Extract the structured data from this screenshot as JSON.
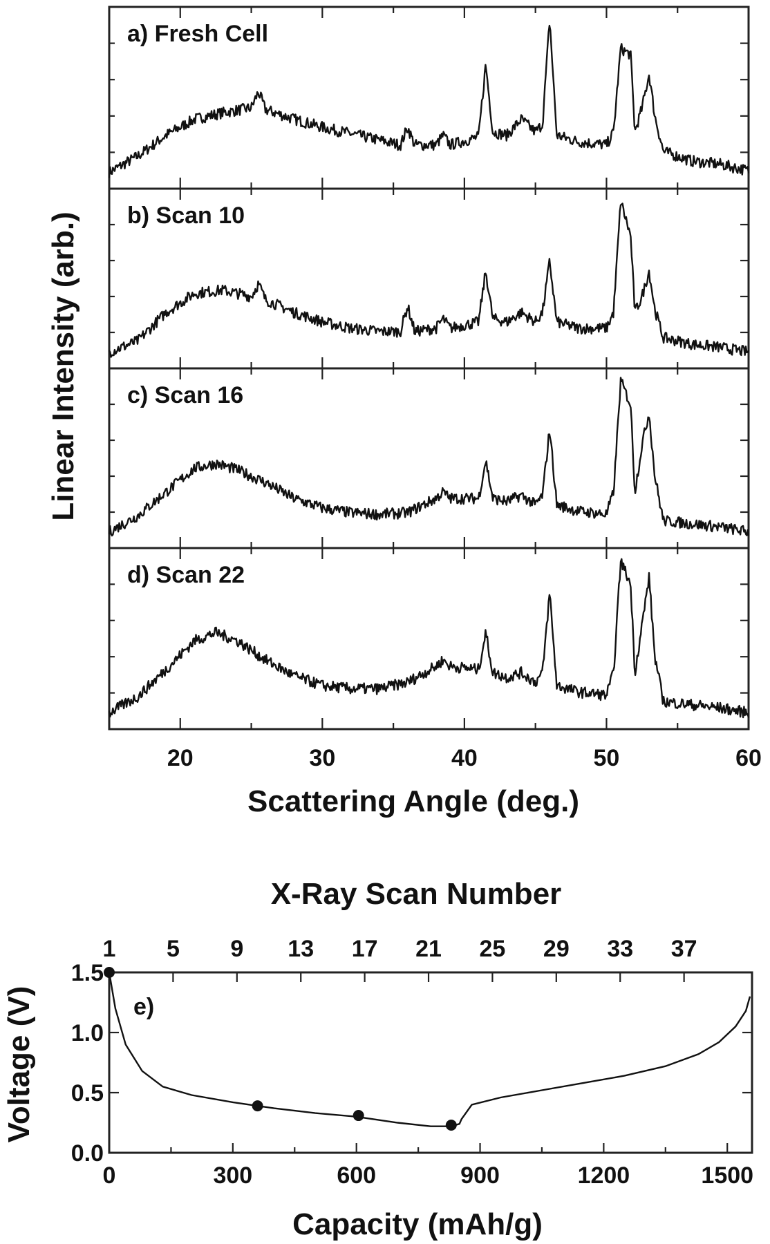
{
  "chart_data": [
    {
      "type": "line",
      "ylabel": "Linear Intensity (arb.)",
      "xlabel": "Scattering Angle (deg.)",
      "xlim": [
        15,
        60
      ],
      "x_ticks": [
        20,
        30,
        40,
        50,
        60
      ],
      "grid": false,
      "panels": [
        {
          "label": "a) Fresh Cell",
          "points": [
            [
              15,
              0.05
            ],
            [
              17,
              0.15
            ],
            [
              19,
              0.28
            ],
            [
              21,
              0.38
            ],
            [
              23,
              0.42
            ],
            [
              25,
              0.45
            ],
            [
              25.5,
              0.55
            ],
            [
              26,
              0.44
            ],
            [
              28,
              0.38
            ],
            [
              30,
              0.33
            ],
            [
              32,
              0.29
            ],
            [
              34,
              0.25
            ],
            [
              35.5,
              0.22
            ],
            [
              36,
              0.33
            ],
            [
              36.5,
              0.22
            ],
            [
              38,
              0.22
            ],
            [
              38.5,
              0.28
            ],
            [
              39,
              0.22
            ],
            [
              41,
              0.27
            ],
            [
              41.5,
              0.72
            ],
            [
              42,
              0.3
            ],
            [
              43,
              0.28
            ],
            [
              44,
              0.38
            ],
            [
              45,
              0.3
            ],
            [
              45.5,
              0.35
            ],
            [
              46,
              1.0
            ],
            [
              46.5,
              0.28
            ],
            [
              48,
              0.24
            ],
            [
              50,
              0.22
            ],
            [
              50.5,
              0.3
            ],
            [
              51,
              0.82
            ],
            [
              51.7,
              0.78
            ],
            [
              52,
              0.3
            ],
            [
              52.5,
              0.45
            ],
            [
              53,
              0.66
            ],
            [
              53.4,
              0.4
            ],
            [
              54,
              0.18
            ],
            [
              56,
              0.12
            ],
            [
              58,
              0.1
            ],
            [
              60,
              0.06
            ]
          ]
        },
        {
          "label": "b) Scan 10",
          "points": [
            [
              15,
              0.05
            ],
            [
              17,
              0.12
            ],
            [
              19,
              0.3
            ],
            [
              21,
              0.42
            ],
            [
              23,
              0.44
            ],
            [
              25,
              0.4
            ],
            [
              25.5,
              0.48
            ],
            [
              26,
              0.38
            ],
            [
              28,
              0.3
            ],
            [
              30,
              0.24
            ],
            [
              32,
              0.2
            ],
            [
              34,
              0.18
            ],
            [
              35.5,
              0.18
            ],
            [
              36,
              0.34
            ],
            [
              36.5,
              0.18
            ],
            [
              38,
              0.2
            ],
            [
              38.5,
              0.26
            ],
            [
              39,
              0.2
            ],
            [
              41,
              0.24
            ],
            [
              41.5,
              0.56
            ],
            [
              42,
              0.26
            ],
            [
              43,
              0.24
            ],
            [
              44,
              0.3
            ],
            [
              45,
              0.24
            ],
            [
              45.5,
              0.3
            ],
            [
              46,
              0.62
            ],
            [
              46.5,
              0.24
            ],
            [
              48,
              0.2
            ],
            [
              50,
              0.2
            ],
            [
              50.5,
              0.3
            ],
            [
              51,
              1.0
            ],
            [
              51.7,
              0.78
            ],
            [
              52,
              0.3
            ],
            [
              52.5,
              0.4
            ],
            [
              53,
              0.56
            ],
            [
              53.4,
              0.32
            ],
            [
              54,
              0.14
            ],
            [
              56,
              0.1
            ],
            [
              58,
              0.08
            ],
            [
              60,
              0.05
            ]
          ]
        },
        {
          "label": "c) Scan 16",
          "points": [
            [
              15,
              0.05
            ],
            [
              17,
              0.15
            ],
            [
              19,
              0.3
            ],
            [
              21,
              0.45
            ],
            [
              22.5,
              0.48
            ],
            [
              24,
              0.44
            ],
            [
              26,
              0.36
            ],
            [
              28,
              0.26
            ],
            [
              30,
              0.2
            ],
            [
              32,
              0.17
            ],
            [
              34,
              0.16
            ],
            [
              36,
              0.17
            ],
            [
              38,
              0.26
            ],
            [
              38.5,
              0.3
            ],
            [
              39,
              0.26
            ],
            [
              41,
              0.26
            ],
            [
              41.5,
              0.5
            ],
            [
              42,
              0.26
            ],
            [
              43,
              0.24
            ],
            [
              44,
              0.28
            ],
            [
              45,
              0.22
            ],
            [
              45.5,
              0.28
            ],
            [
              46,
              0.7
            ],
            [
              46.5,
              0.22
            ],
            [
              48,
              0.18
            ],
            [
              50,
              0.16
            ],
            [
              50.5,
              0.3
            ],
            [
              51,
              1.0
            ],
            [
              51.7,
              0.85
            ],
            [
              52,
              0.3
            ],
            [
              52.5,
              0.6
            ],
            [
              53,
              0.8
            ],
            [
              53.4,
              0.4
            ],
            [
              54,
              0.12
            ],
            [
              56,
              0.1
            ],
            [
              58,
              0.08
            ],
            [
              60,
              0.05
            ]
          ]
        },
        {
          "label": "d) Scan 22",
          "points": [
            [
              15,
              0.05
            ],
            [
              17,
              0.15
            ],
            [
              19,
              0.32
            ],
            [
              21,
              0.5
            ],
            [
              22.5,
              0.55
            ],
            [
              24,
              0.5
            ],
            [
              26,
              0.38
            ],
            [
              28,
              0.28
            ],
            [
              30,
              0.22
            ],
            [
              32,
              0.2
            ],
            [
              34,
              0.2
            ],
            [
              36,
              0.24
            ],
            [
              38,
              0.34
            ],
            [
              38.5,
              0.38
            ],
            [
              39,
              0.34
            ],
            [
              41,
              0.32
            ],
            [
              41.5,
              0.55
            ],
            [
              42,
              0.3
            ],
            [
              43,
              0.27
            ],
            [
              44,
              0.3
            ],
            [
              45,
              0.24
            ],
            [
              45.5,
              0.3
            ],
            [
              46,
              0.8
            ],
            [
              46.5,
              0.22
            ],
            [
              48,
              0.18
            ],
            [
              50,
              0.16
            ],
            [
              50.5,
              0.3
            ],
            [
              51,
              1.0
            ],
            [
              51.7,
              0.85
            ],
            [
              52,
              0.3
            ],
            [
              52.5,
              0.6
            ],
            [
              53,
              0.9
            ],
            [
              53.4,
              0.4
            ],
            [
              54,
              0.12
            ],
            [
              56,
              0.1
            ],
            [
              58,
              0.08
            ],
            [
              60,
              0.05
            ]
          ]
        }
      ]
    },
    {
      "type": "line",
      "label": "e)",
      "title": "X-Ray Scan Number",
      "xlabel": "Capacity (mAh/g)",
      "ylabel": "Voltage (V)",
      "xlim": [
        0,
        1560
      ],
      "ylim": [
        0,
        1.5
      ],
      "x_ticks": [
        0,
        300,
        600,
        900,
        1200,
        1500
      ],
      "y_ticks": [
        0.0,
        0.5,
        1.0,
        1.5
      ],
      "x_tick_labels": [
        "0",
        "300",
        "600",
        "900",
        "1200",
        "1500"
      ],
      "y_tick_labels": [
        "0.0",
        "0.5",
        "1.0",
        "1.5"
      ],
      "top_ticks": [
        {
          "label": "1",
          "capacity": 0
        },
        {
          "label": "5",
          "capacity": 155
        },
        {
          "label": "9",
          "capacity": 310
        },
        {
          "label": "13",
          "capacity": 465
        },
        {
          "label": "17",
          "capacity": 620
        },
        {
          "label": "21",
          "capacity": 775
        },
        {
          "label": "25",
          "capacity": 930
        },
        {
          "label": "29",
          "capacity": 1085
        },
        {
          "label": "33",
          "capacity": 1240
        },
        {
          "label": "37",
          "capacity": 1395
        }
      ],
      "grid": false,
      "series": [
        {
          "points": [
            [
              0,
              1.5
            ],
            [
              15,
              1.2
            ],
            [
              40,
              0.9
            ],
            [
              80,
              0.68
            ],
            [
              130,
              0.55
            ],
            [
              200,
              0.48
            ],
            [
              300,
              0.42
            ],
            [
              400,
              0.37
            ],
            [
              500,
              0.33
            ],
            [
              600,
              0.3
            ],
            [
              700,
              0.25
            ],
            [
              780,
              0.22
            ],
            [
              830,
              0.22
            ],
            [
              850,
              0.24
            ],
            [
              855,
              0.28
            ],
            [
              880,
              0.4
            ],
            [
              950,
              0.46
            ],
            [
              1050,
              0.52
            ],
            [
              1150,
              0.58
            ],
            [
              1250,
              0.64
            ],
            [
              1350,
              0.72
            ],
            [
              1430,
              0.82
            ],
            [
              1480,
              0.92
            ],
            [
              1520,
              1.05
            ],
            [
              1545,
              1.18
            ],
            [
              1555,
              1.3
            ]
          ]
        }
      ],
      "markers": [
        [
          0,
          1.5
        ],
        [
          360,
          0.39
        ],
        [
          605,
          0.31
        ],
        [
          830,
          0.23
        ]
      ]
    }
  ]
}
